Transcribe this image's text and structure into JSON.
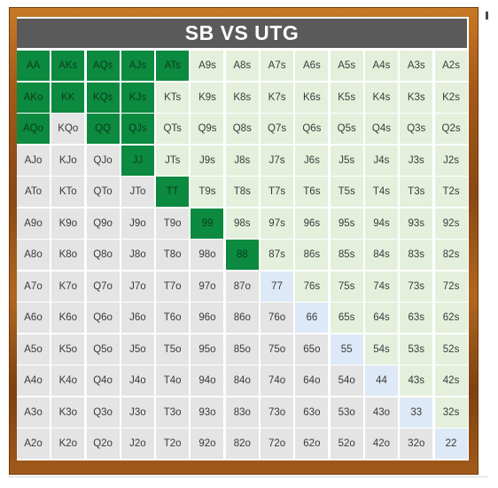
{
  "title": "SB VS UTG",
  "colors": {
    "raise": "#0c8a40",
    "suited": "#e5f0dc",
    "offsuit": "#e4e4e4",
    "pair": "#dde9f6",
    "header": "#5a5a5a"
  },
  "rows": [
    [
      "AA",
      "AKs",
      "AQs",
      "AJs",
      "ATs",
      "A9s",
      "A8s",
      "A7s",
      "A6s",
      "A5s",
      "A4s",
      "A3s",
      "A2s"
    ],
    [
      "AKo",
      "KK",
      "KQs",
      "KJs",
      "KTs",
      "K9s",
      "K8s",
      "K7s",
      "K6s",
      "K5s",
      "K4s",
      "K3s",
      "K2s"
    ],
    [
      "AQo",
      "KQo",
      "QQ",
      "QJs",
      "QTs",
      "Q9s",
      "Q8s",
      "Q7s",
      "Q6s",
      "Q5s",
      "Q4s",
      "Q3s",
      "Q2s"
    ],
    [
      "AJo",
      "KJo",
      "QJo",
      "JJ",
      "JTs",
      "J9s",
      "J8s",
      "J7s",
      "J6s",
      "J5s",
      "J4s",
      "J3s",
      "J2s"
    ],
    [
      "ATo",
      "KTo",
      "QTo",
      "JTo",
      "TT",
      "T9s",
      "T8s",
      "T7s",
      "T6s",
      "T5s",
      "T4s",
      "T3s",
      "T2s"
    ],
    [
      "A9o",
      "K9o",
      "Q9o",
      "J9o",
      "T9o",
      "99",
      "98s",
      "97s",
      "96s",
      "95s",
      "94s",
      "93s",
      "92s"
    ],
    [
      "A8o",
      "K8o",
      "Q8o",
      "J8o",
      "T8o",
      "98o",
      "88",
      "87s",
      "86s",
      "85s",
      "84s",
      "83s",
      "82s"
    ],
    [
      "A7o",
      "K7o",
      "Q7o",
      "J7o",
      "T7o",
      "97o",
      "87o",
      "77",
      "76s",
      "75s",
      "74s",
      "73s",
      "72s"
    ],
    [
      "A6o",
      "K6o",
      "Q6o",
      "J6o",
      "T6o",
      "96o",
      "86o",
      "76o",
      "66",
      "65s",
      "64s",
      "63s",
      "62s"
    ],
    [
      "A5o",
      "K5o",
      "Q5o",
      "J5o",
      "T5o",
      "95o",
      "85o",
      "75o",
      "65o",
      "55",
      "54s",
      "53s",
      "52s"
    ],
    [
      "A4o",
      "K4o",
      "Q4o",
      "J4o",
      "T4o",
      "94o",
      "84o",
      "74o",
      "64o",
      "54o",
      "44",
      "43s",
      "42s"
    ],
    [
      "A3o",
      "K3o",
      "Q3o",
      "J3o",
      "T3o",
      "93o",
      "83o",
      "73o",
      "63o",
      "53o",
      "43o",
      "33",
      "32s"
    ],
    [
      "A2o",
      "K2o",
      "Q2o",
      "J2o",
      "T2o",
      "92o",
      "82o",
      "72o",
      "62o",
      "52o",
      "42o",
      "32o",
      "22"
    ]
  ],
  "highlighted_hands": [
    "AA",
    "AKs",
    "AQs",
    "AJs",
    "ATs",
    "AKo",
    "KK",
    "KQs",
    "KJs",
    "AQo",
    "QQ",
    "QJs",
    "JJ",
    "TT",
    "99",
    "88"
  ]
}
